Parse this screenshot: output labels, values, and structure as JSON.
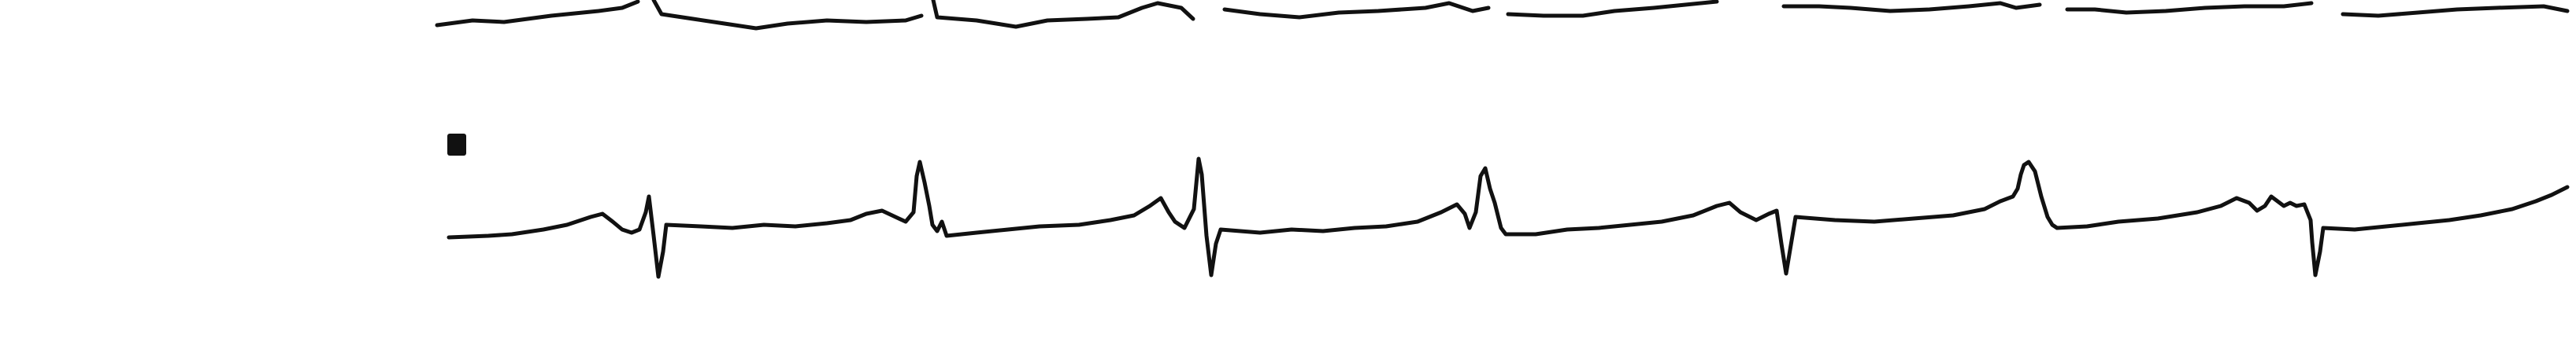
{
  "figure": {
    "trace_color": "#111111",
    "background_color": "#ffffff",
    "content": "ecg-rhythm-strips",
    "strip_count": 2,
    "lead_marker": "black-square"
  }
}
